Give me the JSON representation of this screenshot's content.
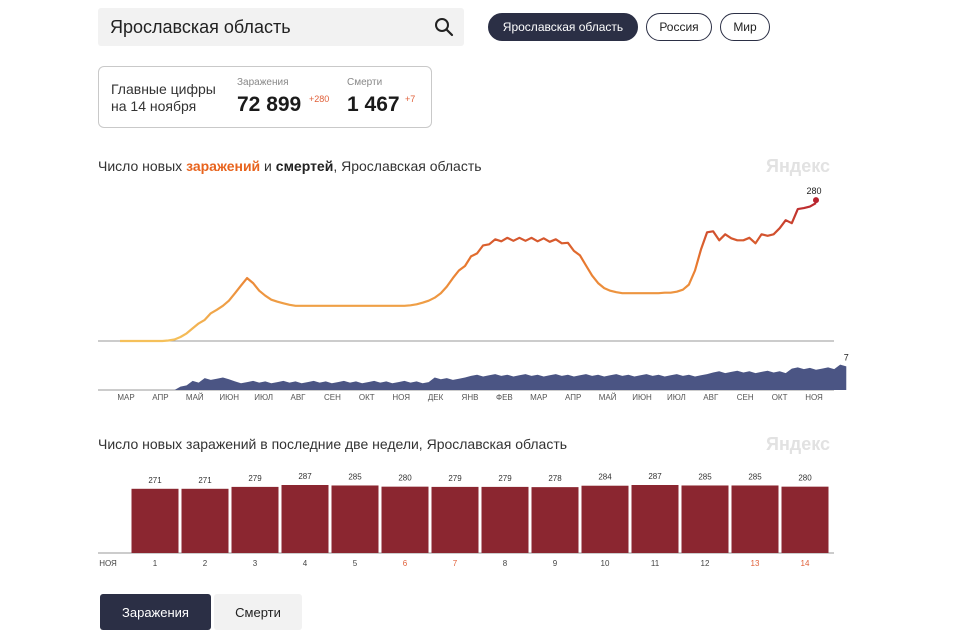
{
  "search": {
    "value": "Ярославская область"
  },
  "regions": {
    "active": "Ярославская область",
    "russia": "Россия",
    "world": "Мир"
  },
  "stats": {
    "label_line1": "Главные цифры",
    "label_line2": "на 14 ноября",
    "infections_caption": "Заражения",
    "infections_value": "72 899",
    "infections_delta": "+280",
    "deaths_caption": "Смерти",
    "deaths_value": "1 467",
    "deaths_delta": "+7"
  },
  "chart1": {
    "title_prefix": "Число новых ",
    "title_infections": "заражений",
    "title_and": " и ",
    "title_deaths": "смертей",
    "title_suffix": ", Ярославская область",
    "watermark": "Яндекс"
  },
  "chart2": {
    "title": "Число новых заражений в последние две недели, Ярославская область",
    "watermark": "Яндекс"
  },
  "tabs": {
    "infections": "Заражения",
    "deaths": "Смерти"
  },
  "chart_data": [
    {
      "type": "line",
      "x_labels": [
        "МАР",
        "АПР",
        "МАЙ",
        "ИЮН",
        "ИЮЛ",
        "АВГ",
        "СЕН",
        "ОКТ",
        "НОЯ",
        "ДЕК",
        "ЯНВ",
        "ФЕВ",
        "МАР",
        "АПР",
        "МАЙ",
        "ИЮН",
        "ИЮЛ",
        "АВГ",
        "СЕН",
        "ОКТ",
        "НОЯ"
      ],
      "series": [
        {
          "values": [
            0,
            0,
            0,
            0,
            0,
            0,
            0,
            0,
            1,
            3,
            8,
            15,
            25,
            35,
            42,
            55,
            62,
            70,
            80,
            95,
            110,
            125,
            115,
            100,
            90,
            82,
            78,
            75,
            72,
            70,
            70,
            70,
            70,
            70,
            70,
            70,
            70,
            70,
            70,
            70,
            70,
            70,
            70,
            70,
            70,
            70,
            70,
            70,
            71,
            73,
            76,
            80,
            86,
            95,
            108,
            125,
            140,
            155,
            168,
            180,
            190,
            198,
            202,
            204,
            205,
            205,
            205,
            205,
            205,
            204,
            204,
            203,
            202,
            200,
            195,
            185,
            170,
            150,
            130,
            115,
            105,
            100,
            97,
            95,
            95,
            95,
            95,
            95,
            95,
            95,
            96,
            96,
            98,
            102,
            112,
            140,
            190,
            222,
            218,
            214,
            212,
            210,
            208,
            206,
            205,
            208,
            212,
            215,
            220,
            230,
            240,
            248,
            262,
            270,
            275,
            280
          ],
          "end_label": "280"
        },
        {
          "values": [
            0,
            0,
            0,
            0,
            0,
            0,
            0,
            0,
            0,
            0,
            1,
            1,
            2,
            2,
            3,
            3,
            3,
            3,
            3,
            2,
            2,
            2,
            2,
            2,
            2,
            2,
            2,
            2,
            2,
            2,
            2,
            2,
            2,
            2,
            2,
            2,
            2,
            2,
            2,
            2,
            2,
            2,
            2,
            2,
            2,
            2,
            2,
            2,
            2,
            2,
            2,
            2,
            3,
            3,
            3,
            3,
            3,
            3,
            4,
            4,
            4,
            4,
            4,
            4,
            4,
            4,
            4,
            4,
            4,
            4,
            4,
            4,
            4,
            4,
            4,
            4,
            4,
            4,
            4,
            4,
            4,
            4,
            4,
            4,
            4,
            4,
            4,
            4,
            4,
            4,
            4,
            4,
            4,
            4,
            4,
            4,
            4,
            4,
            5,
            5,
            5,
            5,
            5,
            5,
            5,
            5,
            5,
            5,
            5,
            5,
            5,
            6,
            6,
            6,
            6,
            6,
            6,
            6,
            6,
            7,
            7
          ],
          "end_label": "7"
        }
      ]
    },
    {
      "type": "bar",
      "categories": [
        "1",
        "2",
        "3",
        "4",
        "5",
        "6",
        "7",
        "8",
        "9",
        "10",
        "11",
        "12",
        "13",
        "14"
      ],
      "values": [
        271,
        271,
        279,
        287,
        285,
        280,
        279,
        279,
        278,
        284,
        287,
        285,
        285,
        280
      ],
      "x_prefix_label": "НОЯ",
      "weekend_categories": [
        "6",
        "7",
        "13",
        "14"
      ],
      "bar_color": "#8b2630",
      "weekend_label_color": "#e0603a"
    }
  ]
}
